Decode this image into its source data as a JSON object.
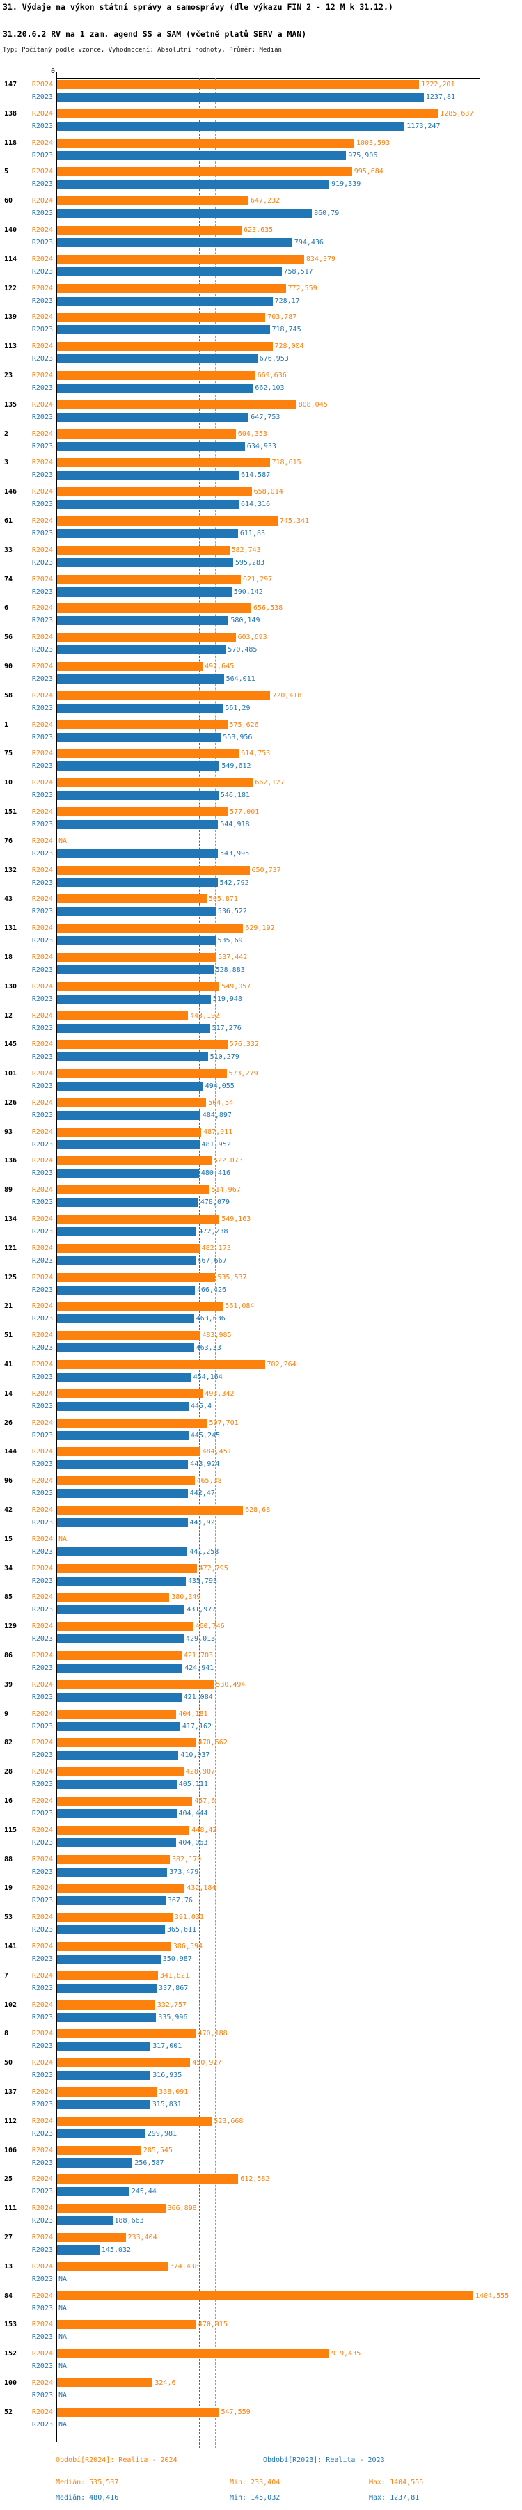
{
  "title": "31. Výdaje na výkon státní správy a samosprávy (dle výkazu FIN 2 - 12 M k 31.12.)",
  "subtitle": "31.20.6.2 RV na 1 zam. agend SS a SAM (včetně platů SERV a MAN)",
  "meta": "Typ: Počítaný podle vzorce, Vyhodnocení: Absolutní hodnoty, Průměr: Medián",
  "colors": {
    "r2024": "#fd810d",
    "r2023": "#2176b5",
    "axis": "#000000"
  },
  "series_labels": {
    "r2024": "R2024",
    "r2023": "R2023"
  },
  "na_label": "NA",
  "axis": {
    "zero_label": "0"
  },
  "legend": {
    "r2024": "Období[R2024]: Realita - 2024",
    "r2023": "Období[R2023]: Realita - 2023"
  },
  "stats": {
    "r2024": {
      "median": "Medián: 535,537",
      "min": "Min: 233,404",
      "max": "Max: 1404,555"
    },
    "r2023": {
      "median": "Medián: 480,416",
      "min": "Min: 145,032",
      "max": "Max: 1237,81"
    }
  },
  "chart_data": {
    "type": "bar",
    "orientation": "horizontal",
    "xlim": [
      0,
      1430
    ],
    "grid": false,
    "legend_position": "bottom",
    "medians": {
      "R2024": 535.537,
      "R2023": 480.416
    },
    "series": [
      "R2024",
      "R2023"
    ],
    "groups": [
      {
        "id": "147",
        "r2024": "1222,201",
        "r2023": "1237,81"
      },
      {
        "id": "138",
        "r2024": "1285,637",
        "r2023": "1173,247"
      },
      {
        "id": "118",
        "r2024": "1003,593",
        "r2023": "975,906"
      },
      {
        "id": "5",
        "r2024": "995,684",
        "r2023": "919,339"
      },
      {
        "id": "60",
        "r2024": "647,232",
        "r2023": "860,79"
      },
      {
        "id": "140",
        "r2024": "623,635",
        "r2023": "794,436"
      },
      {
        "id": "114",
        "r2024": "834,379",
        "r2023": "758,517"
      },
      {
        "id": "122",
        "r2024": "772,559",
        "r2023": "728,17"
      },
      {
        "id": "139",
        "r2024": "703,787",
        "r2023": "718,745"
      },
      {
        "id": "113",
        "r2024": "728,004",
        "r2023": "676,953"
      },
      {
        "id": "23",
        "r2024": "669,636",
        "r2023": "662,103"
      },
      {
        "id": "135",
        "r2024": "808,045",
        "r2023": "647,753"
      },
      {
        "id": "2",
        "r2024": "604,353",
        "r2023": "634,933"
      },
      {
        "id": "3",
        "r2024": "718,615",
        "r2023": "614,587"
      },
      {
        "id": "146",
        "r2024": "658,014",
        "r2023": "614,316"
      },
      {
        "id": "61",
        "r2024": "745,341",
        "r2023": "611,83"
      },
      {
        "id": "33",
        "r2024": "582,743",
        "r2023": "595,283"
      },
      {
        "id": "74",
        "r2024": "621,297",
        "r2023": "590,142"
      },
      {
        "id": "6",
        "r2024": "656,538",
        "r2023": "580,149"
      },
      {
        "id": "56",
        "r2024": "603,693",
        "r2023": "570,485"
      },
      {
        "id": "90",
        "r2024": "492,645",
        "r2023": "564,011"
      },
      {
        "id": "58",
        "r2024": "720,418",
        "r2023": "561,29"
      },
      {
        "id": "1",
        "r2024": "575,626",
        "r2023": "553,956"
      },
      {
        "id": "75",
        "r2024": "614,753",
        "r2023": "549,612"
      },
      {
        "id": "10",
        "r2024": "662,127",
        "r2023": "546,181"
      },
      {
        "id": "151",
        "r2024": "577,001",
        "r2023": "544,918"
      },
      {
        "id": "76",
        "r2024": "NA",
        "r2023": "543,995"
      },
      {
        "id": "132",
        "r2024": "650,737",
        "r2023": "542,792"
      },
      {
        "id": "43",
        "r2024": "505,871",
        "r2023": "536,522"
      },
      {
        "id": "131",
        "r2024": "629,192",
        "r2023": "535,69"
      },
      {
        "id": "18",
        "r2024": "537,442",
        "r2023": "528,883"
      },
      {
        "id": "130",
        "r2024": "549,057",
        "r2023": "519,948"
      },
      {
        "id": "12",
        "r2024": "443,192",
        "r2023": "517,276"
      },
      {
        "id": "145",
        "r2024": "576,332",
        "r2023": "510,279"
      },
      {
        "id": "101",
        "r2024": "573,279",
        "r2023": "494,055"
      },
      {
        "id": "126",
        "r2024": "504,54",
        "r2023": "484,897"
      },
      {
        "id": "93",
        "r2024": "487,911",
        "r2023": "481,952"
      },
      {
        "id": "136",
        "r2024": "522,073",
        "r2023": "480,416"
      },
      {
        "id": "89",
        "r2024": "514,967",
        "r2023": "478,079"
      },
      {
        "id": "134",
        "r2024": "549,163",
        "r2023": "472,238"
      },
      {
        "id": "121",
        "r2024": "482,173",
        "r2023": "467,667"
      },
      {
        "id": "125",
        "r2024": "535,537",
        "r2023": "466,426"
      },
      {
        "id": "21",
        "r2024": "561,084",
        "r2023": "463,636"
      },
      {
        "id": "51",
        "r2024": "483,985",
        "r2023": "463,33"
      },
      {
        "id": "41",
        "r2024": "702,264",
        "r2023": "454,164"
      },
      {
        "id": "14",
        "r2024": "493,342",
        "r2023": "445,4"
      },
      {
        "id": "26",
        "r2024": "507,701",
        "r2023": "445,245"
      },
      {
        "id": "144",
        "r2024": "484,451",
        "r2023": "443,924"
      },
      {
        "id": "96",
        "r2024": "465,38",
        "r2023": "442,47"
      },
      {
        "id": "42",
        "r2024": "628,68",
        "r2023": "441,92"
      },
      {
        "id": "15",
        "r2024": "NA",
        "r2023": "441,258"
      },
      {
        "id": "34",
        "r2024": "472,795",
        "r2023": "435,793"
      },
      {
        "id": "85",
        "r2024": "380,349",
        "r2023": "431,977"
      },
      {
        "id": "129",
        "r2024": "460,746",
        "r2023": "429,013"
      },
      {
        "id": "86",
        "r2024": "421,703",
        "r2023": "424,941"
      },
      {
        "id": "39",
        "r2024": "530,494",
        "r2023": "421,084"
      },
      {
        "id": "9",
        "r2024": "404,181",
        "r2023": "417,162"
      },
      {
        "id": "82",
        "r2024": "470,662",
        "r2023": "410,937"
      },
      {
        "id": "28",
        "r2024": "428,907",
        "r2023": "405,111"
      },
      {
        "id": "16",
        "r2024": "457,6",
        "r2023": "404,444"
      },
      {
        "id": "115",
        "r2024": "448,42",
        "r2023": "404,063"
      },
      {
        "id": "88",
        "r2024": "382,179",
        "r2023": "373,479"
      },
      {
        "id": "19",
        "r2024": "432,184",
        "r2023": "367,76"
      },
      {
        "id": "53",
        "r2024": "391,031",
        "r2023": "365,611"
      },
      {
        "id": "141",
        "r2024": "386,594",
        "r2023": "350,987"
      },
      {
        "id": "7",
        "r2024": "341,821",
        "r2023": "337,867"
      },
      {
        "id": "102",
        "r2024": "332,757",
        "r2023": "335,996"
      },
      {
        "id": "8",
        "r2024": "470,188",
        "r2023": "317,001"
      },
      {
        "id": "50",
        "r2024": "450,927",
        "r2023": "316,935"
      },
      {
        "id": "137",
        "r2024": "338,091",
        "r2023": "315,831"
      },
      {
        "id": "112",
        "r2024": "523,668",
        "r2023": "299,981"
      },
      {
        "id": "106",
        "r2024": "285,545",
        "r2023": "256,587"
      },
      {
        "id": "25",
        "r2024": "612,582",
        "r2023": "245,44"
      },
      {
        "id": "111",
        "r2024": "366,898",
        "r2023": "188,663"
      },
      {
        "id": "27",
        "r2024": "233,404",
        "r2023": "145,032"
      },
      {
        "id": "13",
        "r2024": "374,438",
        "r2023": "NA"
      },
      {
        "id": "84",
        "r2024": "1404,555",
        "r2023": "NA"
      },
      {
        "id": "153",
        "r2024": "470,915",
        "r2023": "NA"
      },
      {
        "id": "152",
        "r2024": "919,435",
        "r2023": "NA"
      },
      {
        "id": "100",
        "r2024": "324,6",
        "r2023": "NA"
      },
      {
        "id": "52",
        "r2024": "547,559",
        "r2023": "NA"
      }
    ]
  }
}
